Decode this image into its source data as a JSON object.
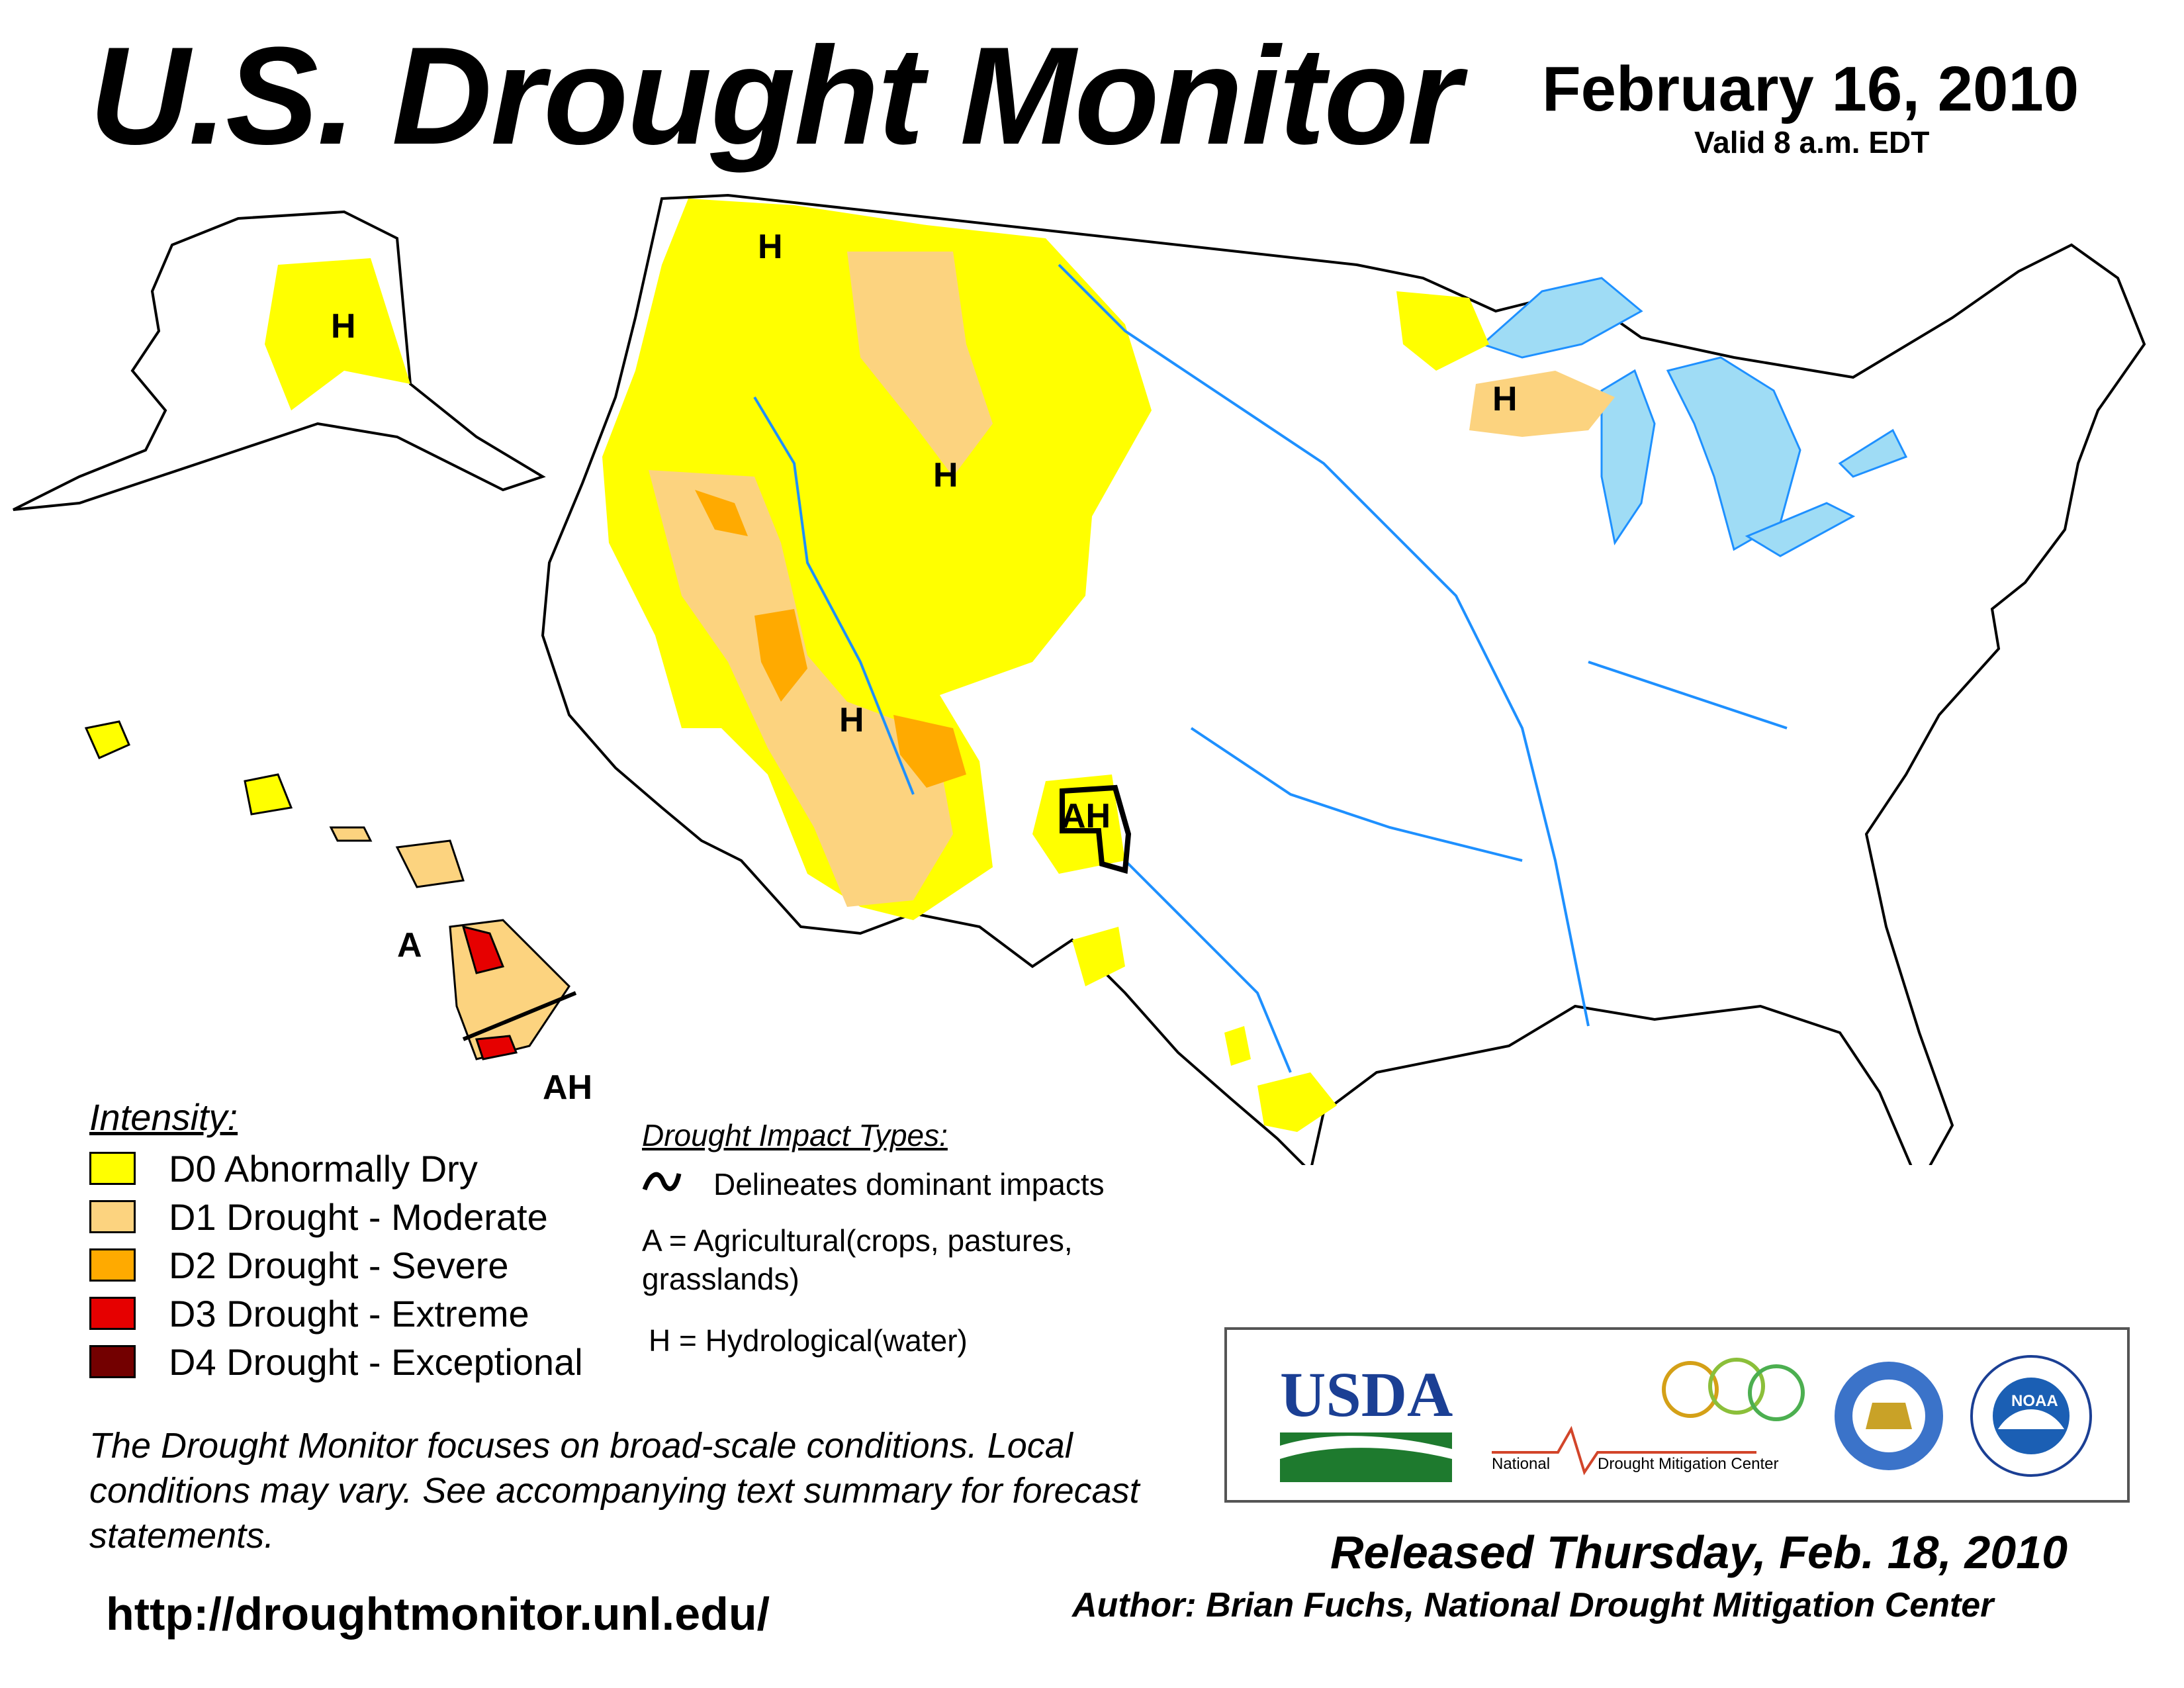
{
  "header": {
    "title": "U.S. Drought Monitor",
    "date": "February 16, 2010",
    "valid": "Valid 8 a.m. EDT"
  },
  "map_labels": {
    "h": "H",
    "a": "A",
    "ah": "AH",
    "ah_partial": "AH"
  },
  "legend": {
    "title": "Intensity:",
    "items": [
      {
        "label": "D0 Abnormally Dry",
        "color": "#ffff00"
      },
      {
        "label": "D1 Drought - Moderate",
        "color": "#fcd37f"
      },
      {
        "label": "D2 Drought - Severe",
        "color": "#ffaa00"
      },
      {
        "label": "D3 Drought - Extreme",
        "color": "#e60000"
      },
      {
        "label": "D4 Drought - Exceptional",
        "color": "#730000"
      }
    ]
  },
  "impacts": {
    "title": "Drought Impact Types:",
    "delineates": "Delineates dominant impacts",
    "agricultural": "A = Agricultural(crops, pastures, grasslands)",
    "hydrological": "H = Hydrological(water)"
  },
  "disclaimer": "The Drought Monitor focuses on broad-scale conditions. Local conditions may vary. See accompanying text summary for forecast statements.",
  "url": "http://droughtmonitor.unl.edu/",
  "logos": {
    "usda": "USDA",
    "ndmc": "National Drought Mitigation Center",
    "ndmc_national": "National",
    "ndmc_rest": "Drought Mitigation Center",
    "noaa": "NOAA"
  },
  "footer": {
    "released": "Released Thursday, Feb. 18, 2010",
    "author": "Author: Brian Fuchs, National Drought Mitigation Center"
  },
  "colors": {
    "water": "#9fdcf5",
    "river": "#1e90ff",
    "border": "#000000",
    "county": "#999999"
  }
}
